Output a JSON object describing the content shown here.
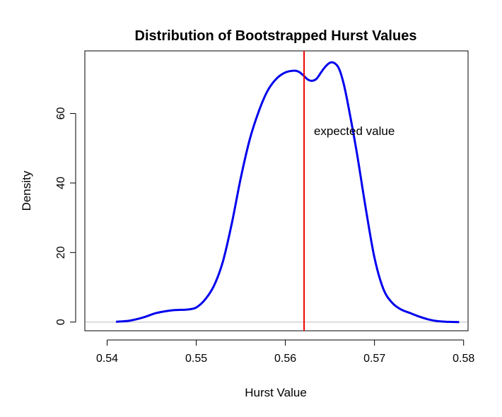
{
  "chart_data": {
    "type": "line",
    "title": "Distribution of Bootstrapped Hurst Values",
    "xlabel": "Hurst Value",
    "ylabel": "Density",
    "xlim": [
      0.5375,
      0.5805
    ],
    "ylim": [
      -2.5,
      78
    ],
    "x_ticks": [
      0.54,
      0.55,
      0.56,
      0.57,
      0.58
    ],
    "x_tick_labels": [
      "0.54",
      "0.55",
      "0.56",
      "0.57",
      "0.58"
    ],
    "y_ticks": [
      0,
      20,
      40,
      60
    ],
    "y_tick_labels": [
      "0",
      "20",
      "40",
      "60"
    ],
    "grid": false,
    "series": [
      {
        "color": "#0000ee",
        "x": [
          0.541,
          0.5425,
          0.544,
          0.5455,
          0.547,
          0.548,
          0.549,
          0.55,
          0.551,
          0.552,
          0.553,
          0.554,
          0.555,
          0.556,
          0.557,
          0.558,
          0.559,
          0.56,
          0.561,
          0.5615,
          0.562,
          0.5625,
          0.563,
          0.5635,
          0.564,
          0.5645,
          0.565,
          0.5655,
          0.566,
          0.5665,
          0.567,
          0.568,
          0.569,
          0.57,
          0.571,
          0.572,
          0.573,
          0.574,
          0.575,
          0.576,
          0.577,
          0.578,
          0.5795
        ],
        "y": [
          0.1,
          0.4,
          1.3,
          2.6,
          3.3,
          3.5,
          3.6,
          4.2,
          6.5,
          10.5,
          17.5,
          28.5,
          41.5,
          52.5,
          60.5,
          66.5,
          70.0,
          71.8,
          72.3,
          72.0,
          71.0,
          69.8,
          69.4,
          70.0,
          71.8,
          73.5,
          74.6,
          74.5,
          73.0,
          69.0,
          63.0,
          49.0,
          33.0,
          18.5,
          9.5,
          5.5,
          3.6,
          2.6,
          1.6,
          0.8,
          0.3,
          0.1,
          0.0
        ]
      }
    ],
    "reference_line": {
      "x": 0.5621,
      "color": "#ee0000"
    },
    "zero_line_color": "#bebebe",
    "annotation": {
      "text": "expected value",
      "x": 0.5632,
      "y": 55
    }
  }
}
